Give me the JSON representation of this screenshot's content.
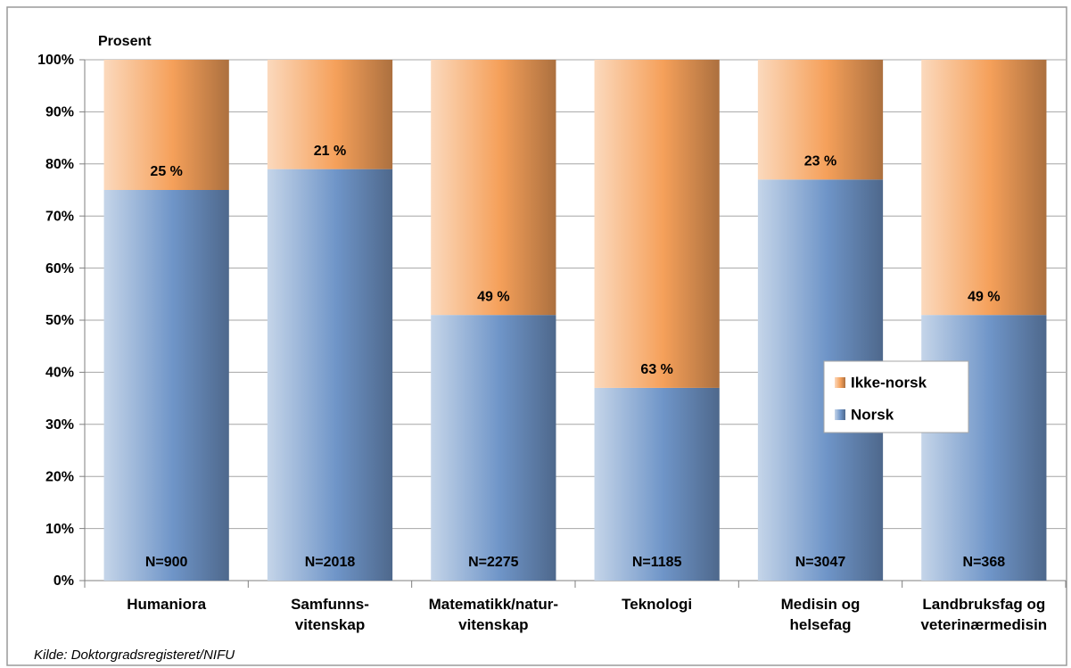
{
  "chart_data": {
    "type": "stacked_bar",
    "y_label": "Prosent",
    "categories": [
      "Humaniora",
      "Samfunns-\nvitenskap",
      "Matematikk/natur-\nvitenskap",
      "Teknologi",
      "Medisin og\nhelsefag",
      "Landbruksfag og\nveterinærmedisin"
    ],
    "series": [
      {
        "name": "Norsk",
        "color": "#6f95c8",
        "values": [
          75,
          79,
          51,
          37,
          77,
          51
        ]
      },
      {
        "name": "Ikke-norsk",
        "color": "#f5a05a",
        "values": [
          25,
          21,
          49,
          63,
          23,
          49
        ],
        "value_labels": [
          "25 %",
          "21 %",
          "49 %",
          "63 %",
          "23 %",
          "49 %"
        ]
      }
    ],
    "annotations": [
      "N=900",
      "N=2018",
      "N=2275",
      "N=1185",
      "N=3047",
      "N=368"
    ],
    "ylim": [
      0,
      100
    ],
    "yticks": [
      {
        "value": 0,
        "label": "0%"
      },
      {
        "value": 10,
        "label": "10%"
      },
      {
        "value": 20,
        "label": "20%"
      },
      {
        "value": 30,
        "label": "30%"
      },
      {
        "value": 40,
        "label": "40%"
      },
      {
        "value": 50,
        "label": "50%"
      },
      {
        "value": 60,
        "label": "60%"
      },
      {
        "value": 70,
        "label": "70%"
      },
      {
        "value": 80,
        "label": "80%"
      },
      {
        "value": 90,
        "label": "90%"
      },
      {
        "value": 100,
        "label": "100%"
      }
    ],
    "grid": true,
    "source": "Kilde:  Doktorgradsregisteret/NIFU"
  }
}
